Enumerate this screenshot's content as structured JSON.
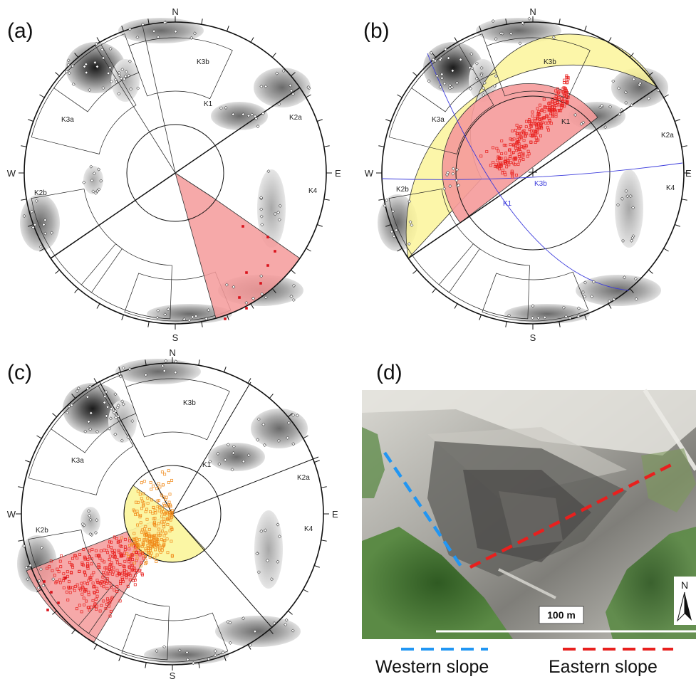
{
  "panels": {
    "a": {
      "label": "(a)",
      "directions": {
        "n": "N",
        "s": "S",
        "e": "E",
        "w": "W"
      },
      "sets": [
        "K3b",
        "K3a",
        "K1",
        "K2a",
        "K2b",
        "K4"
      ]
    },
    "b": {
      "label": "(b)",
      "directions": {
        "n": "N",
        "s": "S",
        "e": "E",
        "w": "W"
      },
      "sets": [
        "K3b",
        "K3a",
        "K1",
        "K2a",
        "K2b",
        "K4"
      ],
      "intersection_labels": [
        "K3b",
        "K1"
      ]
    },
    "c": {
      "label": "(c)",
      "directions": {
        "n": "N",
        "s": "S",
        "e": "E",
        "w": "W"
      },
      "sets": [
        "K3b",
        "K3a",
        "K1",
        "K2a",
        "K2b",
        "K4"
      ]
    },
    "d": {
      "label": "(d)",
      "scale_label": "100 m",
      "north_label": "N",
      "legend": [
        {
          "label": "Western slope",
          "color": "#2196f3"
        },
        {
          "label": "Eastern slope",
          "color": "#e8201e"
        }
      ]
    }
  },
  "colors": {
    "failure_zone": "#f59a9a",
    "friction_cone": "#fbf59a",
    "pole_density_dark": "#3a3a3a",
    "pole_density_light": "#dcdcdc",
    "great_circle_b": "#3b3bdc",
    "critical_poles": "#d9121b",
    "intersection_points": "#e8201e",
    "photo_rock": "#b5b5b0",
    "photo_vegetation": "#3d6b2e"
  },
  "icons": {
    "north_arrow": "north-arrow-icon"
  }
}
